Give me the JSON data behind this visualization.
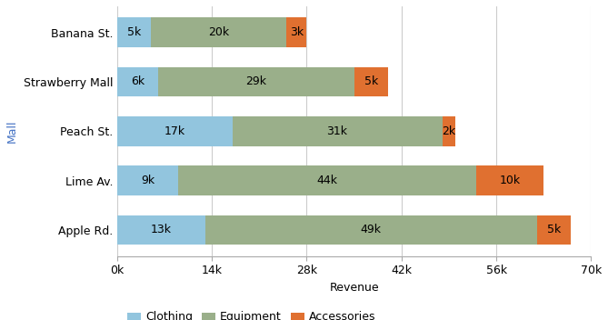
{
  "malls": [
    "Apple Rd.",
    "Lime Av.",
    "Peach St.",
    "Strawberry Mall",
    "Banana St."
  ],
  "clothing": [
    13000,
    9000,
    17000,
    6000,
    5000
  ],
  "equipment": [
    49000,
    44000,
    31000,
    29000,
    20000
  ],
  "accessories": [
    5000,
    10000,
    2000,
    5000,
    3000
  ],
  "clothing_label": [
    "13k",
    "9k",
    "17k",
    "6k",
    "5k"
  ],
  "equipment_label": [
    "49k",
    "44k",
    "31k",
    "29k",
    "20k"
  ],
  "accessories_label": [
    "5k",
    "10k",
    "2k",
    "5k",
    "3k"
  ],
  "color_clothing": "#92c5de",
  "color_equipment": "#9aaf8a",
  "color_accessories": "#e07030",
  "xlabel": "Revenue",
  "ylabel": "Mall",
  "xlim": [
    0,
    70000
  ],
  "xticks": [
    0,
    14000,
    28000,
    42000,
    56000,
    70000
  ],
  "xtick_labels": [
    "0k",
    "14k",
    "28k",
    "42k",
    "56k",
    "70k"
  ],
  "legend_labels": [
    "Clothing",
    "Equipment",
    "Accessories"
  ],
  "bar_height": 0.6,
  "label_fontsize": 9,
  "axis_fontsize": 9,
  "legend_fontsize": 9,
  "background_color": "#ffffff"
}
